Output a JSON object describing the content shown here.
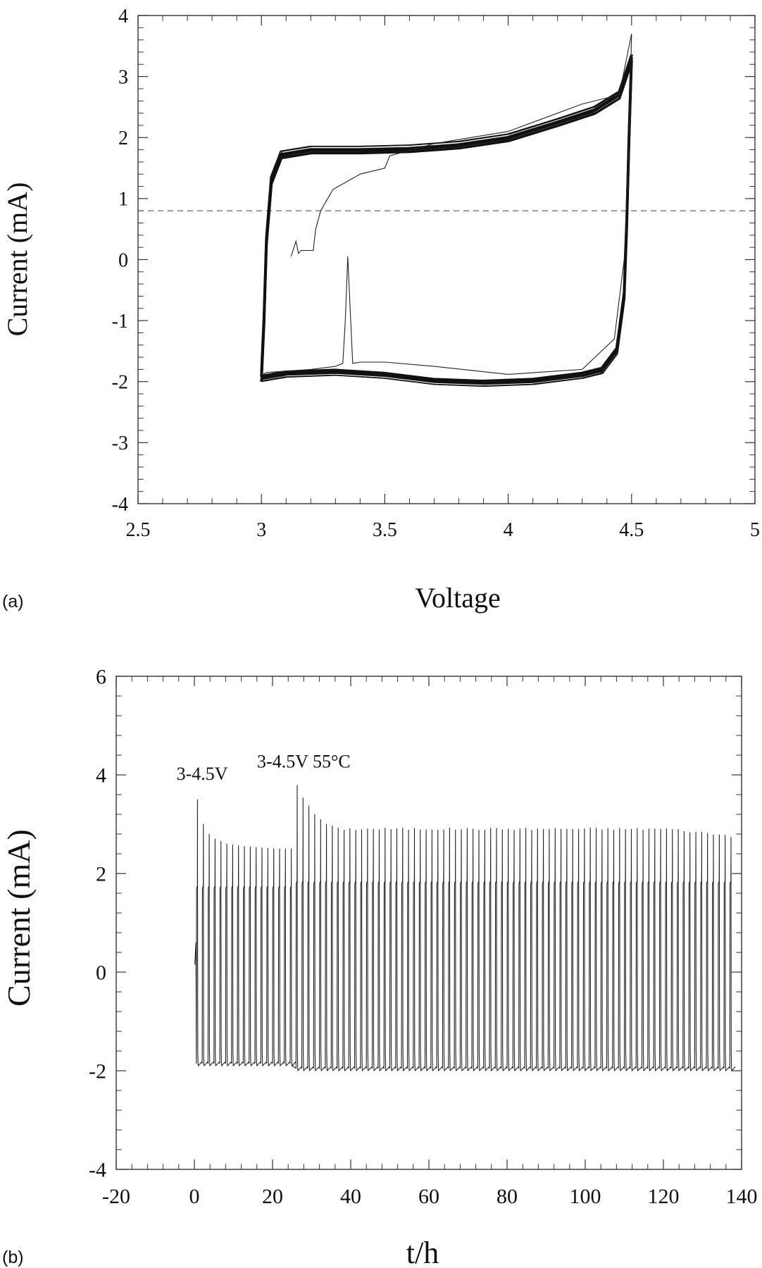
{
  "chart_data": [
    {
      "panel_label": "(a)",
      "type": "line",
      "title": "",
      "xlabel": "Voltage",
      "ylabel": "Current (mA)",
      "xlim": [
        2.5,
        5
      ],
      "ylim": [
        -4,
        4
      ],
      "xticks": [
        2.5,
        3,
        3.5,
        4,
        4.5,
        5
      ],
      "yticks": [
        -4,
        -3,
        -2,
        -1,
        0,
        1,
        2,
        3,
        4
      ],
      "xtick_labels": [
        "2.5",
        "3",
        "3.5",
        "4",
        "4.5",
        "5"
      ],
      "ytick_labels": [
        "-4",
        "-3",
        "-2",
        "-1",
        "0",
        "1",
        "2",
        "3",
        "4"
      ],
      "grid": false,
      "reference_line": {
        "y": 0.8,
        "style": "dashed"
      },
      "first_cycle": {
        "x": [
          3.12,
          3.14,
          3.15,
          3.16,
          3.21,
          3.22,
          3.24,
          3.29,
          3.4,
          3.5,
          3.52,
          3.7,
          4.0,
          4.3,
          4.45,
          4.5,
          4.49,
          4.47,
          4.43,
          4.3,
          4.0,
          3.7,
          3.5,
          3.4,
          3.37,
          3.35,
          3.34,
          3.33,
          3.3,
          3.2,
          3.02,
          3.0
        ],
        "y": [
          0.05,
          0.3,
          0.1,
          0.15,
          0.15,
          0.5,
          0.8,
          1.15,
          1.4,
          1.5,
          1.7,
          1.9,
          2.1,
          2.55,
          2.7,
          3.7,
          2.0,
          0.0,
          -1.3,
          -1.8,
          -1.88,
          -1.75,
          -1.68,
          -1.68,
          -1.7,
          0.05,
          -1.0,
          -1.7,
          -1.75,
          -1.8,
          -1.85,
          -1.9
        ]
      },
      "cycles": {
        "charge": {
          "x": [
            3.0,
            3.01,
            3.02,
            3.04,
            3.08,
            3.2,
            3.4,
            3.6,
            3.8,
            4.0,
            4.2,
            4.35,
            4.45,
            4.5
          ],
          "y": [
            -1.9,
            -1.0,
            0.3,
            1.3,
            1.72,
            1.8,
            1.8,
            1.82,
            1.88,
            2.0,
            2.25,
            2.45,
            2.7,
            3.3
          ]
        },
        "discharge": {
          "x": [
            4.5,
            4.49,
            4.48,
            4.47,
            4.44,
            4.38,
            4.3,
            4.1,
            3.9,
            3.7,
            3.5,
            3.3,
            3.1,
            3.0
          ],
          "y": [
            3.3,
            2.0,
            0.5,
            -0.6,
            -1.5,
            -1.82,
            -1.9,
            -2.0,
            -2.03,
            -2.0,
            -1.9,
            -1.85,
            -1.88,
            -1.95
          ]
        },
        "count": 14
      }
    },
    {
      "panel_label": "(b)",
      "type": "line",
      "title": "",
      "xlabel": "t/h",
      "ylabel": "Current (mA)",
      "xlim": [
        -20,
        140
      ],
      "ylim": [
        -4,
        6
      ],
      "xticks": [
        -20,
        0,
        20,
        40,
        60,
        80,
        100,
        120,
        140
      ],
      "yticks": [
        -4,
        -2,
        0,
        2,
        4,
        6
      ],
      "xtick_labels": [
        "-20",
        "0",
        "20",
        "40",
        "60",
        "80",
        "100",
        "120",
        "140"
      ],
      "ytick_labels": [
        "-4",
        "-2",
        "0",
        "2",
        "4",
        "6"
      ],
      "grid": false,
      "annotations": [
        {
          "text": "3-4.5V",
          "x": 2,
          "y": 3.9
        },
        {
          "text": "3-4.5V 55°C",
          "x": 28,
          "y": 4.15
        }
      ],
      "segments": [
        {
          "condition": "3-4.5V",
          "t_start": 0.5,
          "t_end": 25,
          "cycle_period": 1.5,
          "peak_current": [
            3.5,
            3.0,
            2.8,
            2.7,
            2.65,
            2.6,
            2.58,
            2.56,
            2.55,
            2.54,
            2.53,
            2.52,
            2.51,
            2.5,
            2.5,
            2.5
          ],
          "charge_plateau": 1.7,
          "discharge_current": -1.9
        },
        {
          "condition": "3-4.5V 55°C",
          "t_start": 26,
          "t_end": 138,
          "cycle_period": 1.5,
          "peak_current_start": [
            3.8,
            3.55,
            3.35,
            3.2,
            3.1,
            3.0,
            2.95,
            2.9
          ],
          "peak_current_steady": 2.9,
          "peak_current_end": 2.75,
          "charge_plateau": 1.8,
          "discharge_current": -2.0
        }
      ]
    }
  ]
}
